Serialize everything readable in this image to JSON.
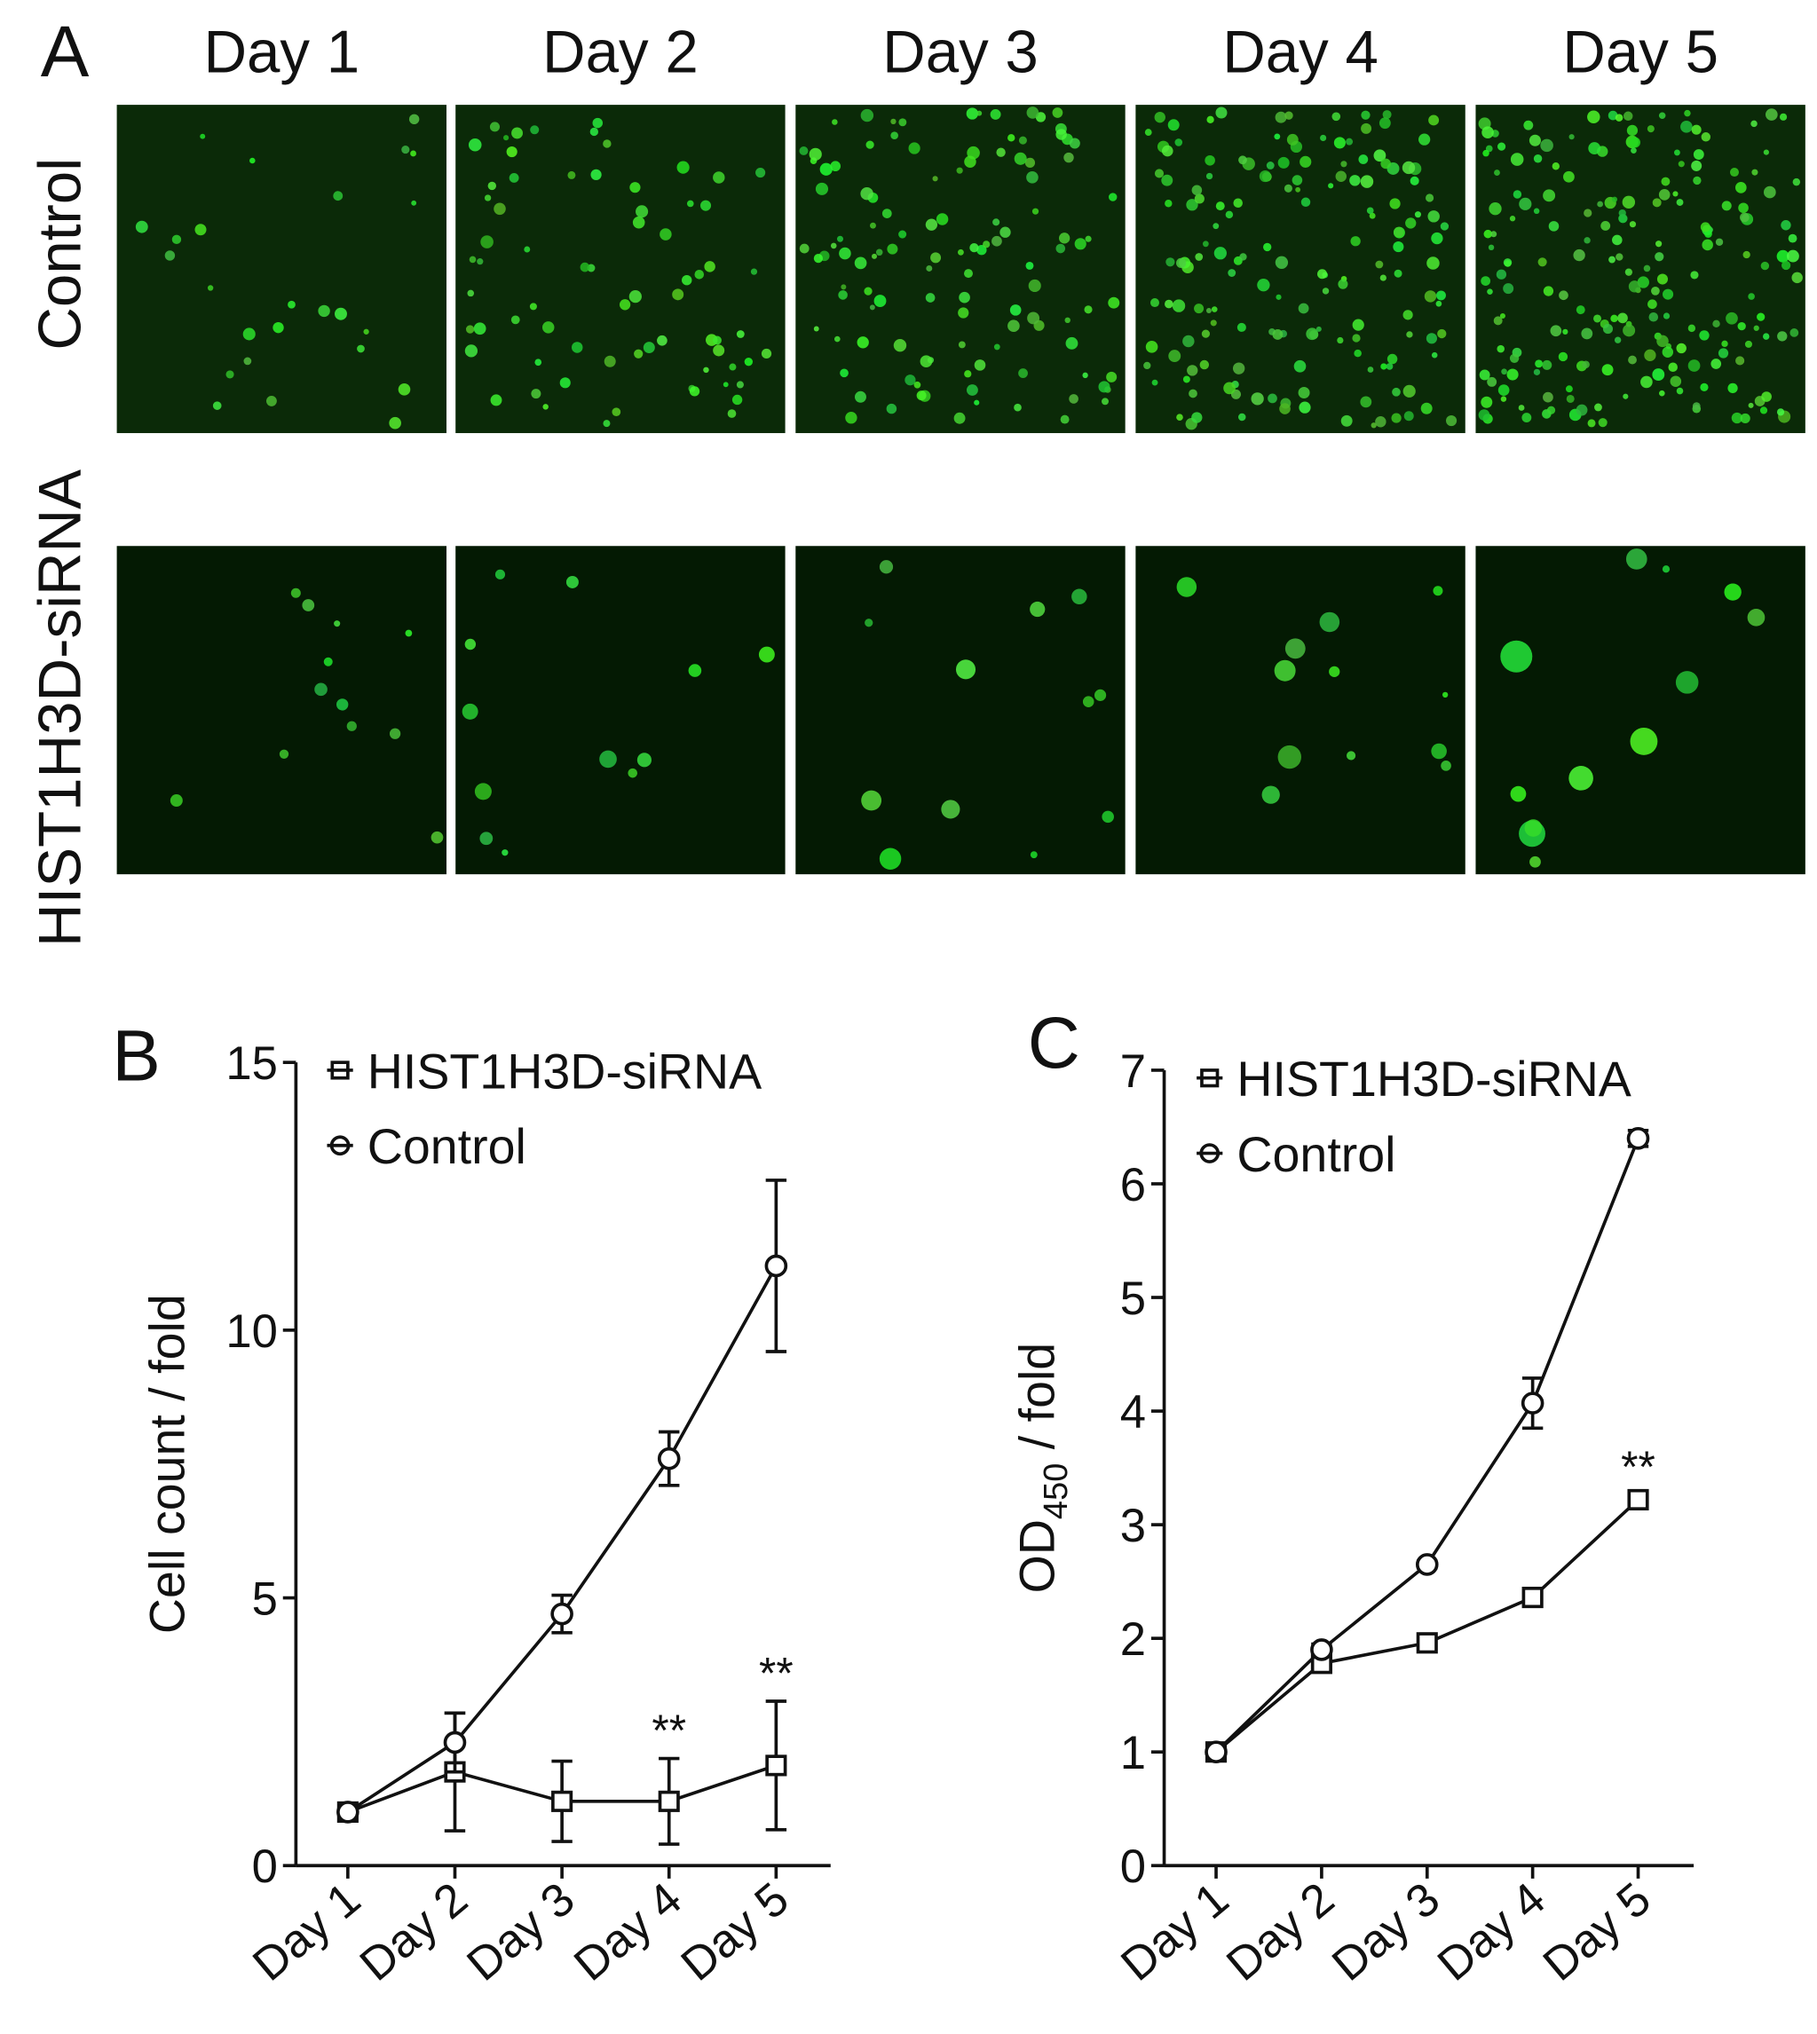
{
  "panel_a": {
    "label": "A",
    "columns": [
      "Day 1",
      "Day 2",
      "Day 3",
      "Day 4",
      "Day 5"
    ],
    "rows": [
      "Control",
      "HIST1H3D-siRNA"
    ]
  },
  "chart_data": [
    {
      "type": "line",
      "label": "B",
      "ylabel": "Cell count / fold",
      "categories": [
        "Day 1",
        "Day 2",
        "Day 3",
        "Day 4",
        "Day 5"
      ],
      "series": [
        {
          "name": "HIST1H3D-siRNA",
          "color": "#111111",
          "marker": "square",
          "values": [
            1,
            1.75,
            1.2,
            1.2,
            1.87
          ],
          "errors": [
            0,
            1.1,
            0.75,
            0.8,
            1.2
          ]
        },
        {
          "name": "Control",
          "color": "#111111",
          "marker": "circle",
          "values": [
            1,
            2.3,
            4.7,
            7.6,
            11.2
          ],
          "errors": [
            0,
            0.55,
            0.35,
            0.5,
            1.6
          ]
        }
      ],
      "annotations": [
        {
          "text": "**",
          "category": "Day 4"
        },
        {
          "text": "**",
          "category": "Day 5"
        }
      ],
      "ylim": [
        0,
        15
      ],
      "yticks": [
        0,
        5,
        10,
        15
      ],
      "legend": "upper left",
      "grid": false
    },
    {
      "type": "line",
      "label": "C",
      "ylabel": {
        "main": "OD",
        "sub": "450",
        "rest": " / fold"
      },
      "categories": [
        "Day 1",
        "Day 2",
        "Day 3",
        "Day 4",
        "Day 5"
      ],
      "series": [
        {
          "name": "HIST1H3D-siRNA",
          "color": "#111111",
          "marker": "square",
          "values": [
            1,
            1.78,
            1.96,
            2.36,
            3.22
          ],
          "errors": [
            0,
            0.04,
            0.03,
            0.04,
            0.04
          ]
        },
        {
          "name": "Control",
          "color": "#111111",
          "marker": "circle",
          "values": [
            1,
            1.9,
            2.65,
            4.07,
            6.4
          ],
          "errors": [
            0,
            0.05,
            0.03,
            0.22,
            0.07
          ]
        }
      ],
      "annotations": [
        {
          "text": "**",
          "category": "Day 5"
        }
      ],
      "ylim": [
        0,
        7
      ],
      "yticks": [
        0,
        1,
        2,
        3,
        4,
        5,
        6,
        7
      ],
      "legend": "upper left",
      "grid": false
    }
  ]
}
